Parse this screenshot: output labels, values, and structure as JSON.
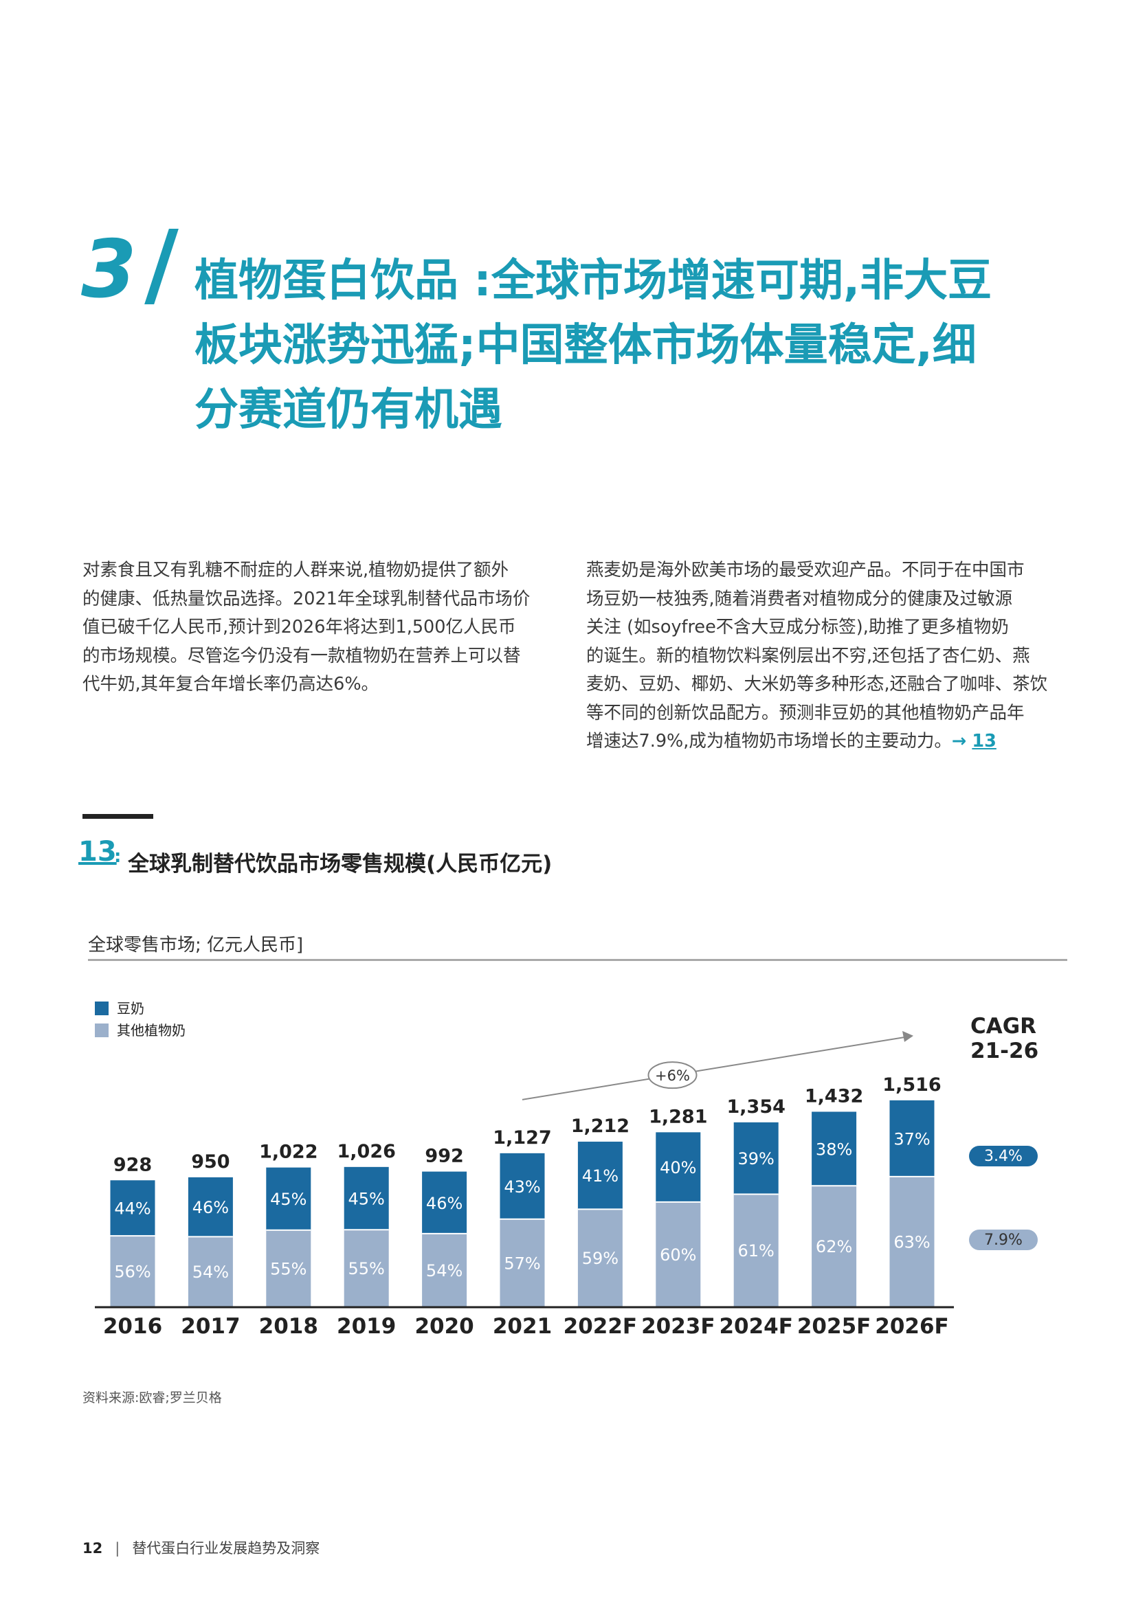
{
  "section": {
    "number": "3",
    "title_lines": [
      "植物蛋白饮品 :全球市场增速可期,非大豆",
      "板块涨势迅猛;中国整体市场体量稳定,细",
      "分赛道仍有机遇"
    ]
  },
  "paragraph_left": [
    "对素食且又有乳糖不耐症的人群来说,植物奶提供了额外",
    "的健康、低热量饮品选择。2021年全球乳制替代品市场价",
    "值已破千亿人民币,预计到2026年将达到1,500亿人民币",
    "的市场规模。尽管迄今仍没有一款植物奶在营养上可以替",
    "代牛奶,其年复合年增长率仍高达6%。"
  ],
  "paragraph_right": [
    "燕麦奶是海外欧美市场的最受欢迎产品。不同于在中国市",
    "场豆奶一枝独秀,随着消费者对植物成分的健康及过敏源",
    "关注 (如soyfree不含大豆成分标签),助推了更多植物奶",
    "的诞生。新的植物饮料案例层出不穷,还包括了杏仁奶、燕",
    "麦奶、豆奶、椰奶、大米奶等多种形态,还融合了咖啡、茶饮",
    "等不同的创新饮品配方。预测非豆奶的其他植物奶产品年",
    "增速达7.9%,成为植物奶市场增长的主要动力。"
  ],
  "paragraph_right_ref_arrow": "→",
  "paragraph_right_ref": "13",
  "figure": {
    "number": "13",
    "colon": ":",
    "title": "全球乳制替代饮品市场零售规模(人民币亿元)",
    "unit_label": "全球零售市场; 亿元人民币]"
  },
  "chart_data": {
    "type": "bar",
    "stacked": true,
    "categories": [
      "2016",
      "2017",
      "2018",
      "2019",
      "2020",
      "2021",
      "2022F",
      "2023F",
      "2024F",
      "2025F",
      "2026F"
    ],
    "totals": [
      928,
      950,
      1022,
      1026,
      992,
      1127,
      1212,
      1281,
      1354,
      1432,
      1516
    ],
    "total_labels": [
      "928",
      "950",
      "1,022",
      "1,026",
      "992",
      "1,127",
      "1,212",
      "1,281",
      "1,354",
      "1,432",
      "1,516"
    ],
    "series": [
      {
        "name": "其他植物奶",
        "color": "#9bb0cb",
        "percent": [
          56,
          54,
          55,
          55,
          54,
          57,
          59,
          60,
          61,
          62,
          63
        ],
        "labels": [
          "56%",
          "54%",
          "55%",
          "55%",
          "54%",
          "57%",
          "59%",
          "60%",
          "61%",
          "62%",
          "63%"
        ]
      },
      {
        "name": "豆奶",
        "color": "#1b6aa0",
        "percent": [
          44,
          46,
          45,
          45,
          46,
          43,
          41,
          40,
          39,
          38,
          37
        ],
        "labels": [
          "44%",
          "46%",
          "45%",
          "45%",
          "46%",
          "43%",
          "41%",
          "40%",
          "39%",
          "38%",
          "37%"
        ]
      }
    ],
    "legend_order": [
      "豆奶",
      "其他植物奶"
    ],
    "legend_position": "top-left",
    "growth_annotation": "+6%",
    "cagr_title_lines": [
      "CAGR",
      "21-26"
    ],
    "cagr_values": [
      {
        "series": "豆奶",
        "label": "3.4%"
      },
      {
        "series": "其他植物奶",
        "label": "7.9%"
      }
    ]
  },
  "source_note": "资料来源:欧睿;罗兰贝格",
  "footer": {
    "page_number": "12",
    "separator": "|",
    "publication": "替代蛋白行业发展趋势及洞察"
  }
}
